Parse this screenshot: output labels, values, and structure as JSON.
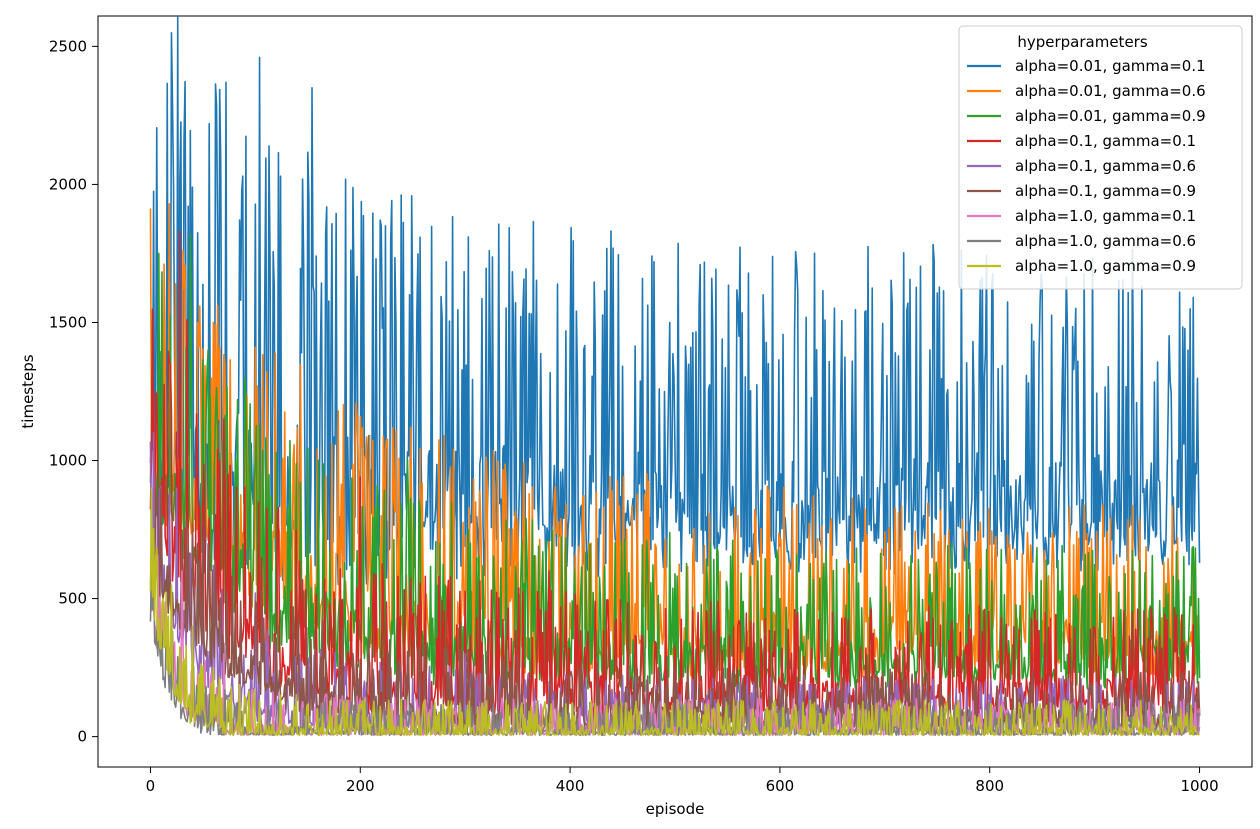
{
  "chart_data": {
    "type": "line",
    "title": "",
    "xlabel": "episode",
    "ylabel": "timesteps",
    "xlim": [
      -50,
      1050
    ],
    "ylim": [
      -110,
      2610
    ],
    "xticks": [
      0,
      200,
      400,
      600,
      800,
      1000
    ],
    "yticks": [
      0,
      500,
      1000,
      1500,
      2000,
      2500
    ],
    "grid": false,
    "legend_title": "hyperparameters",
    "legend_position": "top-right",
    "series": [
      {
        "name": "alpha=0.01, gamma=0.1",
        "color": "#1f77b4",
        "start": 1080,
        "end": 800,
        "tau": 60,
        "amp": 420,
        "decay": 0.9,
        "spikes": [
          [
            5,
            1250
          ],
          [
            22,
            2000
          ],
          [
            28,
            2010
          ],
          [
            40,
            1990
          ],
          [
            56,
            2220
          ],
          [
            72,
            2370
          ],
          [
            88,
            2030
          ],
          [
            104,
            2460
          ],
          [
            124,
            2030
          ],
          [
            154,
            2350
          ],
          [
            167,
            1820
          ],
          [
            220,
            1850
          ],
          [
            323,
            1760
          ],
          [
            480,
            1720
          ],
          [
            524,
            1710
          ],
          [
            535,
            1660
          ],
          [
            560,
            1560
          ],
          [
            710,
            1390
          ],
          [
            790,
            1380
          ],
          [
            880,
            1330
          ],
          [
            940,
            1210
          ],
          [
            970,
            1160
          ],
          [
            985,
            1060
          ]
        ]
      },
      {
        "name": "alpha=0.01, gamma=0.6",
        "color": "#ff7f0e",
        "start": 1050,
        "end": 330,
        "tau": 120,
        "amp": 260,
        "decay": 0.9,
        "spikes": [
          [
            18,
            1930
          ],
          [
            24,
            1640
          ],
          [
            45,
            1500
          ],
          [
            60,
            1500
          ],
          [
            100,
            1410
          ],
          [
            150,
            1010
          ],
          [
            220,
            800
          ],
          [
            310,
            850
          ],
          [
            420,
            700
          ],
          [
            600,
            700
          ],
          [
            870,
            380
          ],
          [
            990,
            360
          ]
        ]
      },
      {
        "name": "alpha=0.01, gamma=0.9",
        "color": "#2ca02c",
        "start": 1000,
        "end": 260,
        "tau": 90,
        "amp": 240,
        "decay": 0.9,
        "spikes": [
          [
            8,
            1750
          ],
          [
            38,
            1820
          ],
          [
            55,
            1400
          ],
          [
            90,
            1300
          ],
          [
            245,
            1000
          ],
          [
            370,
            690
          ],
          [
            600,
            500
          ],
          [
            810,
            390
          ],
          [
            990,
            400
          ]
        ]
      },
      {
        "name": "alpha=0.1, gamma=0.1",
        "color": "#d62728",
        "start": 900,
        "end": 140,
        "tau": 70,
        "amp": 230,
        "decay": 0.88,
        "spikes": [
          [
            5,
            1250
          ],
          [
            28,
            1830
          ],
          [
            35,
            1510
          ],
          [
            70,
            1150
          ],
          [
            200,
            940
          ],
          [
            380,
            600
          ],
          [
            560,
            400
          ],
          [
            800,
            320
          ]
        ]
      },
      {
        "name": "alpha=0.1, gamma=0.6",
        "color": "#9467bd",
        "start": 700,
        "end": 45,
        "tau": 45,
        "amp": 150,
        "decay": 0.85,
        "spikes": [
          [
            3,
            1100
          ],
          [
            25,
            900
          ],
          [
            60,
            620
          ],
          [
            100,
            520
          ],
          [
            300,
            300
          ]
        ]
      },
      {
        "name": "alpha=0.1, gamma=0.9",
        "color": "#8c564b",
        "start": 650,
        "end": 60,
        "tau": 75,
        "amp": 140,
        "decay": 0.85,
        "spikes": [
          [
            10,
            900
          ],
          [
            45,
            700
          ],
          [
            100,
            490
          ],
          [
            180,
            300
          ],
          [
            400,
            220
          ]
        ]
      },
      {
        "name": "alpha=1.0, gamma=0.1",
        "color": "#e377c2",
        "start": 500,
        "end": 18,
        "tau": 22,
        "amp": 110,
        "decay": 0.8,
        "spikes": [
          [
            2,
            600
          ],
          [
            30,
            600
          ],
          [
            70,
            300
          ]
        ]
      },
      {
        "name": "alpha=1.0, gamma=0.6",
        "color": "#7f7f7f",
        "start": 450,
        "end": 15,
        "tau": 18,
        "amp": 100,
        "decay": 0.8,
        "spikes": [
          [
            1,
            600
          ],
          [
            15,
            400
          ],
          [
            40,
            300
          ]
        ]
      },
      {
        "name": "alpha=1.0, gamma=0.9",
        "color": "#bcbd22",
        "start": 550,
        "end": 15,
        "tau": 20,
        "amp": 110,
        "decay": 0.8,
        "spikes": [
          [
            1,
            900
          ],
          [
            5,
            650
          ],
          [
            12,
            500
          ],
          [
            20,
            550
          ],
          [
            40,
            400
          ],
          [
            60,
            250
          ]
        ]
      }
    ]
  }
}
